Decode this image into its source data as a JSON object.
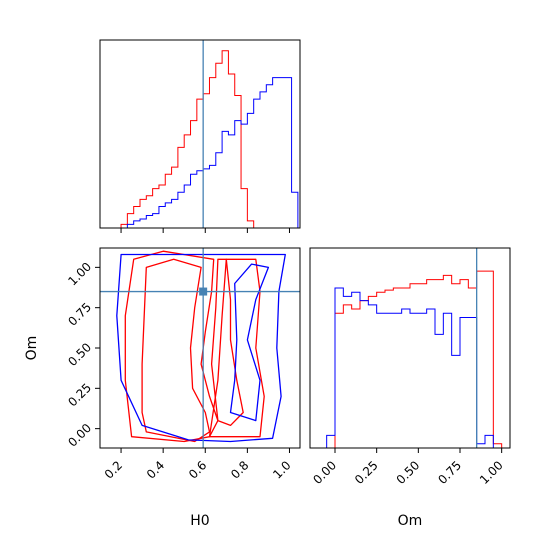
{
  "chart_data": {
    "type": "corner",
    "parameters": [
      "H0",
      "Om"
    ],
    "truths": {
      "H0": 0.59,
      "Om": 0.85
    },
    "colors": {
      "red": "#ff0000",
      "blue": "#0000ff",
      "truth": "#4682b4"
    },
    "panels": [
      {
        "id": "hist-H0",
        "type": "histogram",
        "x_param": "H0",
        "xlim": [
          0.1,
          1.05
        ],
        "bin_edges": [
          0.15,
          0.2,
          0.23,
          0.26,
          0.29,
          0.32,
          0.35,
          0.38,
          0.41,
          0.44,
          0.47,
          0.5,
          0.53,
          0.56,
          0.59,
          0.62,
          0.65,
          0.68,
          0.71,
          0.74,
          0.77,
          0.8,
          0.83,
          0.86,
          0.89,
          0.92,
          0.95,
          0.98,
          1.01,
          1.04
        ],
        "series": [
          {
            "name": "",
            "color": "#ff0000",
            "values": [
              0,
              0.02,
              0.08,
              0.12,
              0.16,
              0.18,
              0.22,
              0.24,
              0.3,
              0.34,
              0.45,
              0.52,
              0.6,
              0.72,
              0.75,
              0.84,
              0.92,
              0.99,
              0.86,
              0.74,
              0.22,
              0.04,
              0,
              0,
              0,
              0,
              0,
              0,
              0
            ]
          },
          {
            "name": "",
            "color": "#0000ff",
            "values": [
              0,
              0,
              0.02,
              0.04,
              0.05,
              0.07,
              0.08,
              0.12,
              0.14,
              0.16,
              0.2,
              0.24,
              0.3,
              0.32,
              0.33,
              0.35,
              0.42,
              0.54,
              0.52,
              0.6,
              0.58,
              0.64,
              0.72,
              0.76,
              0.8,
              0.84,
              0.84,
              0.84,
              0.2
            ]
          }
        ],
        "ylim": [
          0,
          1.05
        ]
      },
      {
        "id": "contour-H0-Om",
        "type": "contour",
        "x_param": "H0",
        "y_param": "Om",
        "xlim": [
          0.1,
          1.05
        ],
        "ylim": [
          -0.12,
          1.12
        ],
        "xticks": [
          0.2,
          0.4,
          0.6,
          0.8,
          1.0
        ],
        "xtick_labels": [
          "0.2",
          "0.4",
          "0.6",
          "0.8",
          "1.0"
        ],
        "yticks": [
          0.0,
          0.25,
          0.5,
          0.75,
          1.0
        ],
        "ytick_labels": [
          "0.00",
          "0.25",
          "0.50",
          "0.75",
          "1.00"
        ],
        "xlabel": "",
        "ylabel": "Om",
        "contours": [
          {
            "color": "#ff0000",
            "points": [
              [
                0.32,
                -0.02
              ],
              [
                0.55,
                -0.08
              ],
              [
                0.62,
                -0.02
              ],
              [
                0.6,
                0.1
              ],
              [
                0.54,
                0.25
              ],
              [
                0.53,
                0.5
              ],
              [
                0.55,
                0.75
              ],
              [
                0.58,
                1.0
              ],
              [
                0.45,
                1.05
              ],
              [
                0.32,
                1.0
              ],
              [
                0.31,
                0.7
              ],
              [
                0.3,
                0.4
              ],
              [
                0.3,
                0.1
              ],
              [
                0.32,
                -0.02
              ]
            ]
          },
          {
            "color": "#ff0000",
            "points": [
              [
                0.25,
                -0.05
              ],
              [
                0.5,
                -0.08
              ],
              [
                0.62,
                -0.05
              ],
              [
                0.66,
                0.05
              ],
              [
                0.62,
                0.2
              ],
              [
                0.58,
                0.4
              ],
              [
                0.6,
                0.6
              ],
              [
                0.63,
                0.85
              ],
              [
                0.64,
                1.05
              ],
              [
                0.4,
                1.1
              ],
              [
                0.26,
                1.05
              ],
              [
                0.22,
                0.7
              ],
              [
                0.22,
                0.3
              ],
              [
                0.25,
                -0.05
              ]
            ]
          },
          {
            "color": "#ff0000",
            "points": [
              [
                0.66,
                0.05
              ],
              [
                0.72,
                0.02
              ],
              [
                0.78,
                0.1
              ],
              [
                0.75,
                0.3
              ],
              [
                0.72,
                0.55
              ],
              [
                0.72,
                0.8
              ],
              [
                0.7,
                1.05
              ],
              [
                0.66,
                1.05
              ],
              [
                0.65,
                0.75
              ],
              [
                0.63,
                0.4
              ],
              [
                0.66,
                0.05
              ]
            ]
          },
          {
            "color": "#ff0000",
            "points": [
              [
                0.62,
                -0.05
              ],
              [
                0.86,
                -0.05
              ],
              [
                0.88,
                0.2
              ],
              [
                0.84,
                0.5
              ],
              [
                0.86,
                0.85
              ],
              [
                0.84,
                1.05
              ],
              [
                0.7,
                1.05
              ],
              [
                0.68,
                0.7
              ],
              [
                0.66,
                0.3
              ],
              [
                0.62,
                -0.05
              ]
            ]
          },
          {
            "color": "#0000ff",
            "points": [
              [
                0.3,
                0.02
              ],
              [
                0.52,
                -0.07
              ],
              [
                0.72,
                -0.08
              ],
              [
                0.92,
                -0.06
              ],
              [
                0.96,
                0.2
              ],
              [
                0.94,
                0.5
              ],
              [
                0.95,
                0.85
              ],
              [
                0.98,
                1.08
              ],
              [
                0.2,
                1.08
              ],
              [
                0.18,
                0.7
              ],
              [
                0.2,
                0.3
              ],
              [
                0.3,
                0.02
              ]
            ]
          },
          {
            "color": "#0000ff",
            "points": [
              [
                0.72,
                0.1
              ],
              [
                0.84,
                0.05
              ],
              [
                0.86,
                0.3
              ],
              [
                0.8,
                0.55
              ],
              [
                0.84,
                0.8
              ],
              [
                0.9,
                1.0
              ],
              [
                0.82,
                1.02
              ],
              [
                0.74,
                0.9
              ],
              [
                0.75,
                0.55
              ],
              [
                0.74,
                0.3
              ],
              [
                0.72,
                0.1
              ]
            ]
          }
        ]
      },
      {
        "id": "hist-Om",
        "type": "histogram",
        "x_param": "Om",
        "xlim": [
          -0.15,
          1.05
        ],
        "xticks": [
          0.0,
          0.25,
          0.5,
          0.75,
          1.0
        ],
        "xtick_labels": [
          "0.00",
          "0.25",
          "0.50",
          "0.75",
          "1.00"
        ],
        "bin_edges": [
          -0.05,
          0.0,
          0.05,
          0.1,
          0.15,
          0.2,
          0.25,
          0.3,
          0.35,
          0.4,
          0.45,
          0.5,
          0.55,
          0.6,
          0.65,
          0.7,
          0.75,
          0.8,
          0.85,
          0.9,
          0.95,
          1.0
        ],
        "series": [
          {
            "name": "",
            "color": "#ff0000",
            "values": [
              0,
              0.64,
              0.68,
              0.66,
              0.7,
              0.72,
              0.74,
              0.75,
              0.76,
              0.76,
              0.78,
              0.78,
              0.8,
              0.8,
              0.82,
              0.78,
              0.8,
              0.76,
              0.84,
              0.84,
              0.02
            ]
          },
          {
            "name": "",
            "color": "#0000ff",
            "values": [
              0.06,
              0.76,
              0.72,
              0.74,
              0.7,
              0.68,
              0.64,
              0.64,
              0.64,
              0.66,
              0.64,
              0.64,
              0.66,
              0.54,
              0.64,
              0.44,
              0.62,
              0.62,
              0.02,
              0.06,
              0.0
            ]
          }
        ],
        "ylim": [
          0,
          0.95
        ]
      }
    ]
  },
  "labels": {
    "xlabel_left": "H0",
    "xlabel_right": "Om",
    "ylabel_om": "Om"
  }
}
